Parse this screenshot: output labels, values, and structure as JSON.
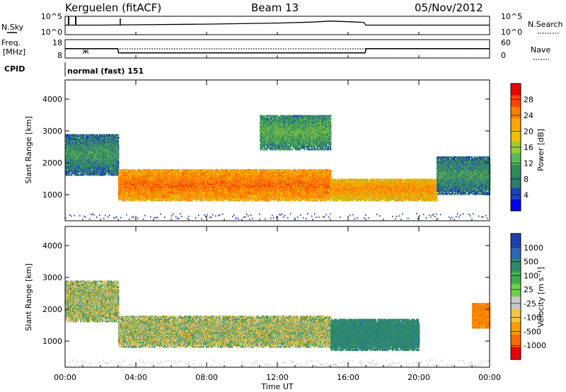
{
  "header": {
    "station": "Kerguelen (fitACF)",
    "beam": "Beam 13",
    "date": "05/Nov/2012"
  },
  "left_labels": {
    "nsky": "N.Sky",
    "freq": "Freq.",
    "freq_unit": "[MHz]",
    "cpid": "CPID"
  },
  "right_labels": {
    "nsearch": "N.Search",
    "nave": "Nave"
  },
  "cpid_value": "normal (fast) 151",
  "x_axis": {
    "label": "Time UT",
    "ticks": [
      "00:00",
      "04:00",
      "08:00",
      "12:00",
      "16:00",
      "20:00",
      "00:00"
    ]
  },
  "colorbars": {
    "power": {
      "label": "Power [dB]",
      "ticks": [
        "4",
        "8",
        "12",
        "16",
        "20",
        "24",
        "28"
      ],
      "colors": [
        "#0000ee",
        "#1e3fbf",
        "#2e7d6e",
        "#2e8b57",
        "#5cb85c",
        "#9acd32",
        "#f0c000",
        "#ffa500",
        "#ff7f00",
        "#ff4500",
        "#ee0000"
      ]
    },
    "velocity": {
      "label": "Velocity [m s⁻¹]",
      "ticks": [
        "1000",
        "500",
        "100",
        "25",
        "-25",
        "-100",
        "-500",
        "-1000"
      ],
      "colors": [
        "#1c3fae",
        "#2a67b5",
        "#2f8a6a",
        "#3fae4a",
        "#6fd14a",
        "#c8c8c8",
        "#f5c542",
        "#f5a000",
        "#ff6a00",
        "#ee0000"
      ]
    }
  },
  "chart_data": [
    {
      "type": "line",
      "panel": "N.Sky / N.Search",
      "ylabel_left": "N.Sky",
      "ylabel_right": "N.Search",
      "y_ticks_left": [
        "10^5",
        "10^0"
      ],
      "y_ticks_right": [
        "10^5",
        "10^0"
      ],
      "x_range_hours": [
        0,
        24
      ],
      "series": [
        {
          "x": [
            0,
            2,
            4,
            8,
            12,
            14,
            15,
            16,
            16.9,
            17,
            20,
            24
          ],
          "y_log10": [
            2.6,
            2.6,
            2.7,
            2.9,
            3.2,
            3.5,
            3.8,
            3.6,
            3.4,
            2.6,
            2.6,
            2.6
          ]
        }
      ]
    },
    {
      "type": "line",
      "panel": "Freq / Nave",
      "ylabel_left": "Freq. [MHz]",
      "ylabel_right": "Nave",
      "y_ticks_left": [
        "18",
        "8"
      ],
      "y_ticks_right": [
        "60",
        "0"
      ],
      "ylim_left": [
        8,
        18
      ],
      "ylim_right": [
        0,
        60
      ],
      "x_range_hours": [
        0,
        24
      ],
      "series": [
        {
          "name": "Freq.",
          "x": [
            0,
            2.98,
            3.02,
            16.96,
            17.02,
            24
          ],
          "y": [
            13.1,
            13.1,
            10.6,
            10.6,
            13.1,
            13.1
          ]
        },
        {
          "name": "Nave",
          "x": [
            0,
            24
          ],
          "y": [
            30,
            30
          ]
        }
      ]
    },
    {
      "type": "heatmap",
      "panel": "Power",
      "ylabel": "Slant Range [km]",
      "xlabel": "",
      "y_ticks": [
        "1000",
        "2000",
        "3000",
        "4000"
      ],
      "ylim": [
        180,
        4600
      ],
      "x_range_hours": [
        0,
        24
      ],
      "colorbar": "Power [dB]",
      "regions": [
        {
          "t": [
            0,
            3
          ],
          "range_km": [
            1600,
            2900
          ],
          "power_db": 10
        },
        {
          "t": [
            3,
            15
          ],
          "range_km": [
            800,
            1800
          ],
          "power_db": 24
        },
        {
          "t": [
            15,
            21
          ],
          "range_km": [
            800,
            1500
          ],
          "power_db": 22
        },
        {
          "t": [
            21,
            24
          ],
          "range_km": [
            1000,
            2200
          ],
          "power_db": 10
        },
        {
          "t": [
            11,
            15
          ],
          "range_km": [
            2400,
            3500
          ],
          "power_db": 12
        }
      ]
    },
    {
      "type": "heatmap",
      "panel": "Velocity",
      "ylabel": "Slant Range [km]",
      "xlabel": "Time UT",
      "y_ticks": [
        "1000",
        "2000",
        "3000",
        "4000"
      ],
      "ylim": [
        180,
        4600
      ],
      "x_range_hours": [
        0,
        24
      ],
      "colorbar": "Velocity [m s-1]",
      "regions": [
        {
          "t": [
            0,
            3
          ],
          "range_km": [
            1600,
            2900
          ],
          "velocity": 0
        },
        {
          "t": [
            3,
            15
          ],
          "range_km": [
            800,
            1800
          ],
          "velocity": 0
        },
        {
          "t": [
            15,
            20
          ],
          "range_km": [
            700,
            1700
          ],
          "velocity": 200
        },
        {
          "t": [
            23,
            24
          ],
          "range_km": [
            1400,
            2200
          ],
          "velocity": -300
        }
      ]
    }
  ]
}
